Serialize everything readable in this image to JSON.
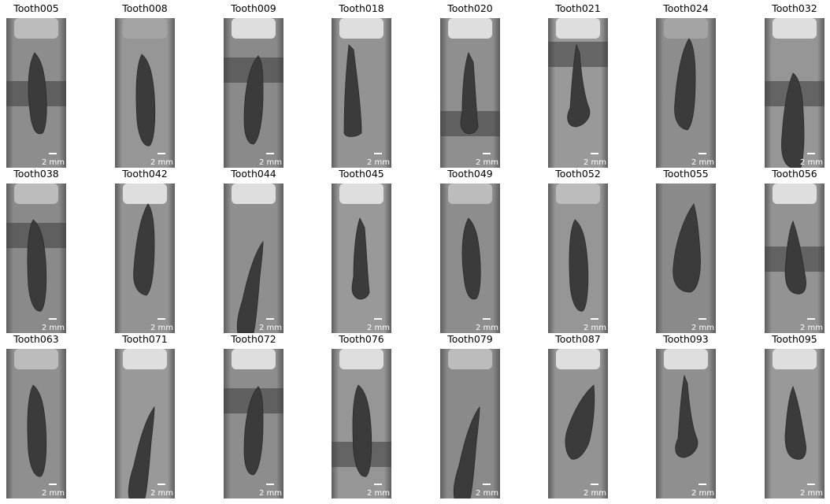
{
  "scale_bar_label": "2 mm",
  "panels": [
    {
      "title": "Tooth005",
      "band": "mid",
      "tooth": "a",
      "cap": "dim"
    },
    {
      "title": "Tooth008",
      "band": "none",
      "tooth": "b",
      "cap": "dark"
    },
    {
      "title": "Tooth009",
      "band": "high",
      "tooth": "c",
      "cap": "normal"
    },
    {
      "title": "Tooth018",
      "band": "none",
      "tooth": "d",
      "cap": "normal"
    },
    {
      "title": "Tooth020",
      "band": "low",
      "tooth": "e",
      "cap": "normal"
    },
    {
      "title": "Tooth021",
      "band": "top",
      "tooth": "f",
      "cap": "normal"
    },
    {
      "title": "Tooth024",
      "band": "none",
      "tooth": "g",
      "cap": "dark"
    },
    {
      "title": "Tooth032",
      "band": "mid",
      "tooth": "h",
      "cap": "normal"
    },
    {
      "title": "Tooth038",
      "band": "high",
      "tooth": "b",
      "cap": "dim"
    },
    {
      "title": "Tooth042",
      "band": "none",
      "tooth": "g",
      "cap": "normal"
    },
    {
      "title": "Tooth044",
      "band": "none",
      "tooth": "i",
      "cap": "normal"
    },
    {
      "title": "Tooth045",
      "band": "none",
      "tooth": "e",
      "cap": "normal"
    },
    {
      "title": "Tooth049",
      "band": "none",
      "tooth": "a",
      "cap": "dim"
    },
    {
      "title": "Tooth052",
      "band": "none",
      "tooth": "b",
      "cap": "dim"
    },
    {
      "title": "Tooth055",
      "band": "none",
      "tooth": "j",
      "cap": "none"
    },
    {
      "title": "Tooth056",
      "band": "mid",
      "tooth": "k",
      "cap": "normal"
    },
    {
      "title": "Tooth063",
      "band": "none",
      "tooth": "b",
      "cap": "dim"
    },
    {
      "title": "Tooth071",
      "band": "none",
      "tooth": "i",
      "cap": "normal"
    },
    {
      "title": "Tooth072",
      "band": "high",
      "tooth": "c",
      "cap": "normal"
    },
    {
      "title": "Tooth076",
      "band": "low",
      "tooth": "b",
      "cap": "normal"
    },
    {
      "title": "Tooth079",
      "band": "none",
      "tooth": "i",
      "cap": "dim"
    },
    {
      "title": "Tooth087",
      "band": "none",
      "tooth": "l",
      "cap": "normal"
    },
    {
      "title": "Tooth093",
      "band": "none",
      "tooth": "f",
      "cap": "normal"
    },
    {
      "title": "Tooth095",
      "band": "none",
      "tooth": "k",
      "cap": "normal"
    }
  ]
}
